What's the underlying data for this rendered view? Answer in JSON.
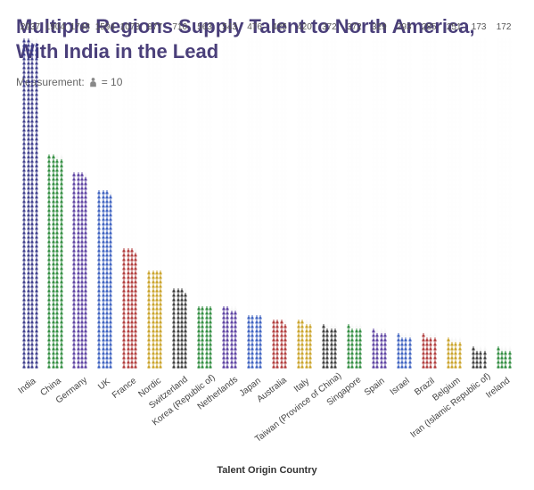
{
  "title_text": "Multiple Regions Supply Talent to North America, With India in the Lead",
  "title_color": "#4a3f7a",
  "measurement_label": "Measurement:",
  "measurement_unit": "= 10",
  "axis_label": "Talent Origin Country",
  "chart": {
    "type": "pictogram-bar",
    "unit_value": 10,
    "icons_per_row": 4,
    "max_ghost_rows": 74,
    "ghost_color": "#bbbbbb",
    "background_color": "#ffffff",
    "items": [
      {
        "label": "India",
        "value": 2937,
        "color": "#3a3a8a"
      },
      {
        "label": "China",
        "value": 1904,
        "color": "#2e8b3d"
      },
      {
        "label": "Germany",
        "value": 1748,
        "color": "#5a3fa0"
      },
      {
        "label": "UK",
        "value": 1594,
        "color": "#3a5fbf"
      },
      {
        "label": "France",
        "value": 1073,
        "color": "#b03a3a"
      },
      {
        "label": "Nordic",
        "value": 877,
        "color": "#c9a227"
      },
      {
        "label": "Switzerland",
        "value": 710,
        "color": "#3a3a3a"
      },
      {
        "label": "Korea (Republic of)",
        "value": 563,
        "color": "#2e8b3d"
      },
      {
        "label": "Netherlands",
        "value": 543,
        "color": "#5a3fa0"
      },
      {
        "label": "Japan",
        "value": 476,
        "color": "#3a5fbf"
      },
      {
        "label": "Australia",
        "value": 425,
        "color": "#b03a3a"
      },
      {
        "label": "Italy",
        "value": 420,
        "color": "#c9a227"
      },
      {
        "label": "Taiwan (Province of China)",
        "value": 372,
        "color": "#3a3a3a"
      },
      {
        "label": "Singapore",
        "value": 372,
        "color": "#2e8b3d"
      },
      {
        "label": "Spain",
        "value": 329,
        "color": "#5a3fa0"
      },
      {
        "label": "Israel",
        "value": 293,
        "color": "#3a5fbf"
      },
      {
        "label": "Brazil",
        "value": 285,
        "color": "#b03a3a"
      },
      {
        "label": "Belgium",
        "value": 251,
        "color": "#c9a227"
      },
      {
        "label": "Iran (Islamic Republic of)",
        "value": 173,
        "color": "#3a3a3a"
      },
      {
        "label": "Ireland",
        "value": 172,
        "color": "#2e8b3d"
      }
    ]
  }
}
